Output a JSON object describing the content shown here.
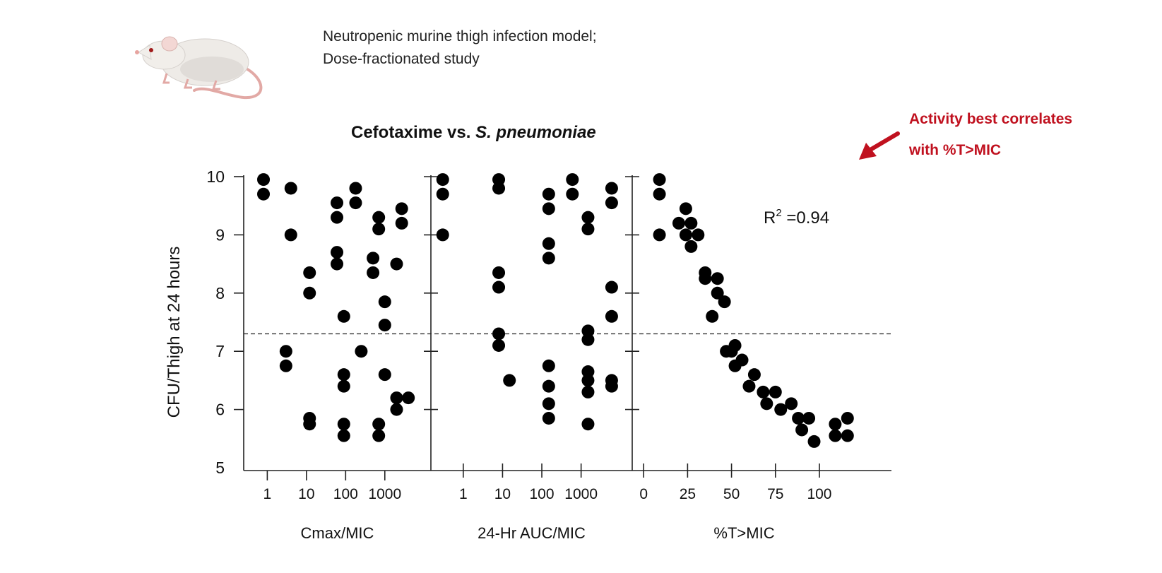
{
  "header": {
    "caption_lines": [
      "Neutropenic murine thigh infection model;",
      "Dose-fractionated study"
    ],
    "mouse_icon": "mouse-icon"
  },
  "callout": {
    "lines": [
      "Activity best correlates",
      "with %T>MIC"
    ],
    "color": "#c0111f",
    "arrow_icon": "arrow-down-left-icon"
  },
  "colors": {
    "points": "#000000",
    "axes": "#222222"
  },
  "chart_data": {
    "type": "scatter",
    "title_prefix": "Cefotaxime vs. ",
    "title_italic": "S. pneumoniae",
    "ylabel": "CFU/Thigh at 24 hours",
    "ylim": [
      5,
      10
    ],
    "yticks": [
      5,
      6,
      7,
      8,
      9,
      10
    ],
    "threshold_y": 7.3,
    "annotation": {
      "text": "R",
      "sup": "2",
      "rest": " =0.94"
    },
    "panels": [
      {
        "xlabel": "Cmax/MIC",
        "xscale": "log",
        "xlim": [
          0.25,
          15000
        ],
        "xticks": [
          1,
          10,
          100,
          1000
        ],
        "xtick_labels": [
          "1",
          "10",
          "100",
          "1000"
        ],
        "points": [
          [
            0.8,
            9.95
          ],
          [
            0.8,
            9.7
          ],
          [
            4,
            9.8
          ],
          [
            4,
            9.0
          ],
          [
            3,
            7.0
          ],
          [
            3,
            6.75
          ],
          [
            12,
            8.35
          ],
          [
            12,
            8.0
          ],
          [
            12,
            5.85
          ],
          [
            12,
            5.75
          ],
          [
            60,
            9.55
          ],
          [
            60,
            9.3
          ],
          [
            60,
            8.7
          ],
          [
            60,
            8.5
          ],
          [
            90,
            7.6
          ],
          [
            90,
            6.6
          ],
          [
            90,
            6.4
          ],
          [
            90,
            5.75
          ],
          [
            90,
            5.55
          ],
          [
            180,
            9.8
          ],
          [
            180,
            9.55
          ],
          [
            250,
            7.0
          ],
          [
            500,
            8.6
          ],
          [
            500,
            8.35
          ],
          [
            700,
            9.3
          ],
          [
            700,
            9.1
          ],
          [
            700,
            5.75
          ],
          [
            700,
            5.55
          ],
          [
            1000,
            7.85
          ],
          [
            1000,
            7.45
          ],
          [
            1000,
            6.6
          ],
          [
            2000,
            8.5
          ],
          [
            2000,
            6.2
          ],
          [
            2000,
            6.0
          ],
          [
            2700,
            9.45
          ],
          [
            2700,
            9.2
          ],
          [
            4000,
            6.2
          ]
        ]
      },
      {
        "xlabel": "24-Hr AUC/MIC",
        "xscale": "log",
        "xlim": [
          0.15,
          20000
        ],
        "xticks": [
          1,
          10,
          100,
          1000
        ],
        "xtick_labels": [
          "1",
          "10",
          "100",
          "1000"
        ],
        "points": [
          [
            0.3,
            9.95
          ],
          [
            0.3,
            9.7
          ],
          [
            0.3,
            9.0
          ],
          [
            8,
            9.95
          ],
          [
            8,
            9.8
          ],
          [
            8,
            8.35
          ],
          [
            8,
            8.1
          ],
          [
            8,
            7.3
          ],
          [
            8,
            7.1
          ],
          [
            15,
            6.5
          ],
          [
            150,
            9.7
          ],
          [
            150,
            9.45
          ],
          [
            150,
            8.85
          ],
          [
            150,
            8.6
          ],
          [
            150,
            6.75
          ],
          [
            150,
            6.4
          ],
          [
            150,
            6.1
          ],
          [
            150,
            5.85
          ],
          [
            600,
            9.95
          ],
          [
            600,
            9.7
          ],
          [
            1500,
            9.3
          ],
          [
            1500,
            9.1
          ],
          [
            1500,
            7.35
          ],
          [
            1500,
            7.2
          ],
          [
            1500,
            6.65
          ],
          [
            1500,
            6.5
          ],
          [
            1500,
            6.3
          ],
          [
            1500,
            5.75
          ],
          [
            6000,
            9.8
          ],
          [
            6000,
            9.55
          ],
          [
            6000,
            8.1
          ],
          [
            6000,
            7.6
          ],
          [
            6000,
            6.5
          ],
          [
            6000,
            6.4
          ]
        ]
      },
      {
        "xlabel": "%T>MIC",
        "xscale": "linear",
        "xlim": [
          -6.5,
          141
        ],
        "xticks": [
          0,
          25,
          50,
          75,
          100
        ],
        "xtick_labels": [
          "0",
          "25",
          "50",
          "75",
          "100"
        ],
        "points": [
          [
            9,
            9.95
          ],
          [
            9,
            9.7
          ],
          [
            9,
            9.0
          ],
          [
            20,
            9.2
          ],
          [
            24,
            9.45
          ],
          [
            24,
            9.0
          ],
          [
            27,
            9.2
          ],
          [
            27,
            8.8
          ],
          [
            31,
            9.0
          ],
          [
            35,
            8.35
          ],
          [
            35,
            8.25
          ],
          [
            39,
            7.6
          ],
          [
            42,
            8.25
          ],
          [
            42,
            8.0
          ],
          [
            46,
            7.85
          ],
          [
            47,
            7.0
          ],
          [
            50,
            7.0
          ],
          [
            52,
            7.1
          ],
          [
            52,
            6.75
          ],
          [
            56,
            6.85
          ],
          [
            60,
            6.4
          ],
          [
            63,
            6.6
          ],
          [
            68,
            6.3
          ],
          [
            70,
            6.1
          ],
          [
            75,
            6.3
          ],
          [
            78,
            6.0
          ],
          [
            84,
            6.1
          ],
          [
            88,
            5.85
          ],
          [
            90,
            5.65
          ],
          [
            94,
            5.85
          ],
          [
            97,
            5.45
          ],
          [
            109,
            5.75
          ],
          [
            109,
            5.55
          ],
          [
            116,
            5.85
          ],
          [
            116,
            5.55
          ]
        ]
      }
    ]
  }
}
